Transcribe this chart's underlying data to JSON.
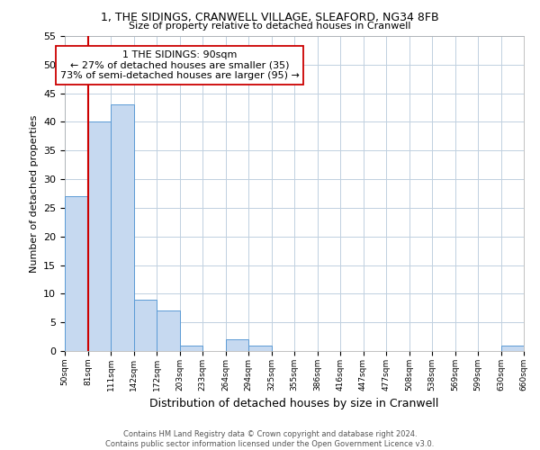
{
  "title_line1": "1, THE SIDINGS, CRANWELL VILLAGE, SLEAFORD, NG34 8FB",
  "title_line2": "Size of property relative to detached houses in Cranwell",
  "xlabel": "Distribution of detached houses by size in Cranwell",
  "ylabel": "Number of detached properties",
  "bin_labels": [
    "50sqm",
    "81sqm",
    "111sqm",
    "142sqm",
    "172sqm",
    "203sqm",
    "233sqm",
    "264sqm",
    "294sqm",
    "325sqm",
    "355sqm",
    "386sqm",
    "416sqm",
    "447sqm",
    "477sqm",
    "508sqm",
    "538sqm",
    "569sqm",
    "599sqm",
    "630sqm",
    "660sqm"
  ],
  "bar_heights": [
    27,
    40,
    43,
    9,
    7,
    1,
    0,
    2,
    1,
    0,
    0,
    0,
    0,
    0,
    0,
    0,
    0,
    0,
    0,
    1,
    0
  ],
  "bar_color": "#c6d9f0",
  "bar_edge_color": "#5b9bd5",
  "reference_line_x": 1,
  "reference_line_color": "#cc0000",
  "annotation_text": "1 THE SIDINGS: 90sqm\n← 27% of detached houses are smaller (35)\n73% of semi-detached houses are larger (95) →",
  "annotation_box_edge_color": "#cc0000",
  "ylim": [
    0,
    55
  ],
  "yticks": [
    0,
    5,
    10,
    15,
    20,
    25,
    30,
    35,
    40,
    45,
    50,
    55
  ],
  "footer_line1": "Contains HM Land Registry data © Crown copyright and database right 2024.",
  "footer_line2": "Contains public sector information licensed under the Open Government Licence v3.0.",
  "background_color": "#ffffff",
  "grid_color": "#c0d0e0"
}
